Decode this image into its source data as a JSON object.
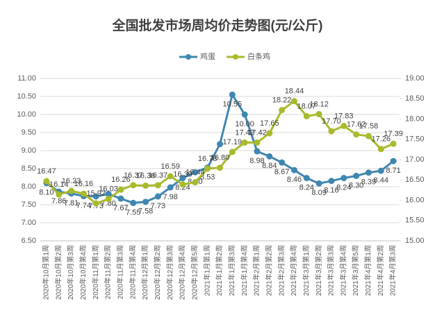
{
  "chart_data": {
    "type": "line",
    "title": "全国批发市场周均价走势图(元/公斤)",
    "categories": [
      "2020年10月第1周",
      "2020年10月第2周",
      "2020年10月第3周",
      "2020年10月第4周",
      "2020年11月第1周",
      "2020年11月第2周",
      "2020年11月第3周",
      "2020年11月第4周",
      "2020年12月第1周",
      "2020年12月第2周",
      "2020年12月第3周",
      "2020年12月第4周",
      "2020年12月第5周",
      "2021年1月第1周",
      "2021年1月第2周",
      "2021年1月第3周",
      "2021年1月第4周",
      "2021年2月第1周",
      "2021年2月第2周",
      "2021年2月第3周",
      "2021年2月第4周",
      "2021年3月第1周",
      "2021年3月第2周",
      "2021年3月第3周",
      "2021年3月第4周",
      "2021年3月第5周",
      "2021年4月第1周",
      "2021年4月第2周",
      "2021年4月第3周"
    ],
    "series": [
      {
        "name": "鸡蛋",
        "color": "#3f86b1",
        "values": [
          8.1,
          7.86,
          7.81,
          7.74,
          7.73,
          7.8,
          7.67,
          7.55,
          7.58,
          7.73,
          7.98,
          8.24,
          8.4,
          8.53,
          9.18,
          10.55,
          10.0,
          8.98,
          8.84,
          8.67,
          8.46,
          8.24,
          8.09,
          8.16,
          8.24,
          8.3,
          8.39,
          8.44,
          8.71
        ],
        "value_labels": [
          "8.10",
          "7.86",
          "7.81",
          "7.74",
          "7.73",
          "7.80",
          "7.67",
          "7.55",
          "7.58",
          "7.73",
          "7.98",
          "8.24",
          "8.40",
          "8.53",
          null,
          "10.55",
          "10.00",
          "8.98",
          "8.84",
          "8.67",
          "8.46",
          "8.24",
          "8.09",
          "8.16",
          "8.24",
          "8.30",
          "8.39",
          "8.44",
          "8.71"
        ]
      },
      {
        "name": "白条鸡",
        "color": "#a9ba2d",
        "axis": "y2",
        "values": [
          16.47,
          16.14,
          16.23,
          16.16,
          15.92,
          16.03,
          16.26,
          16.37,
          16.36,
          16.37,
          16.59,
          16.39,
          16.44,
          16.78,
          16.8,
          17.19,
          17.42,
          17.42,
          17.65,
          18.22,
          18.44,
          18.07,
          18.12,
          17.7,
          17.83,
          17.62,
          17.58,
          17.26,
          17.39
        ],
        "value_labels": [
          "16.47",
          "16.14",
          "16.23",
          "16.16",
          "15.92",
          "16.03",
          "16.26",
          "16.37",
          "16.36",
          "16.37",
          "16.59",
          "16.39",
          "16.44",
          "16.78",
          "16.80",
          "17.19",
          "17.42",
          "17.42",
          "17.65",
          "18.22",
          "18.44",
          "18.07",
          "18.12",
          "17.70",
          "17.83",
          "17.62",
          "17.58",
          "17.26",
          "17.39"
        ]
      }
    ],
    "ylim": [
      6.5,
      11
    ],
    "yticks": [
      {
        "value": 6.5,
        "label": "6.50"
      },
      {
        "value": 7,
        "label": "7.00"
      },
      {
        "value": 7.5,
        "label": "7.50"
      },
      {
        "value": 8,
        "label": "8.00"
      },
      {
        "value": 8.5,
        "label": "8.50"
      },
      {
        "value": 9,
        "label": "9.00"
      },
      {
        "value": 9.5,
        "label": "9.50"
      },
      {
        "value": 10,
        "label": "10.00"
      },
      {
        "value": 10.5,
        "label": "10.50"
      },
      {
        "value": 11,
        "label": "11.00"
      }
    ],
    "y2lim": [
      15,
      19
    ],
    "y2ticks": [
      {
        "value": 15,
        "label": "15.00"
      },
      {
        "value": 15.5,
        "label": "15.50"
      },
      {
        "value": 16,
        "label": "16.00"
      },
      {
        "value": 16.5,
        "label": "16.50"
      },
      {
        "value": 17,
        "label": "17.00"
      },
      {
        "value": 17.5,
        "label": "17.50"
      },
      {
        "value": 18,
        "label": "18.00"
      },
      {
        "value": 18.5,
        "label": "18.50"
      },
      {
        "value": 19,
        "label": "19.00"
      }
    ],
    "grid": true,
    "legend": "top"
  }
}
